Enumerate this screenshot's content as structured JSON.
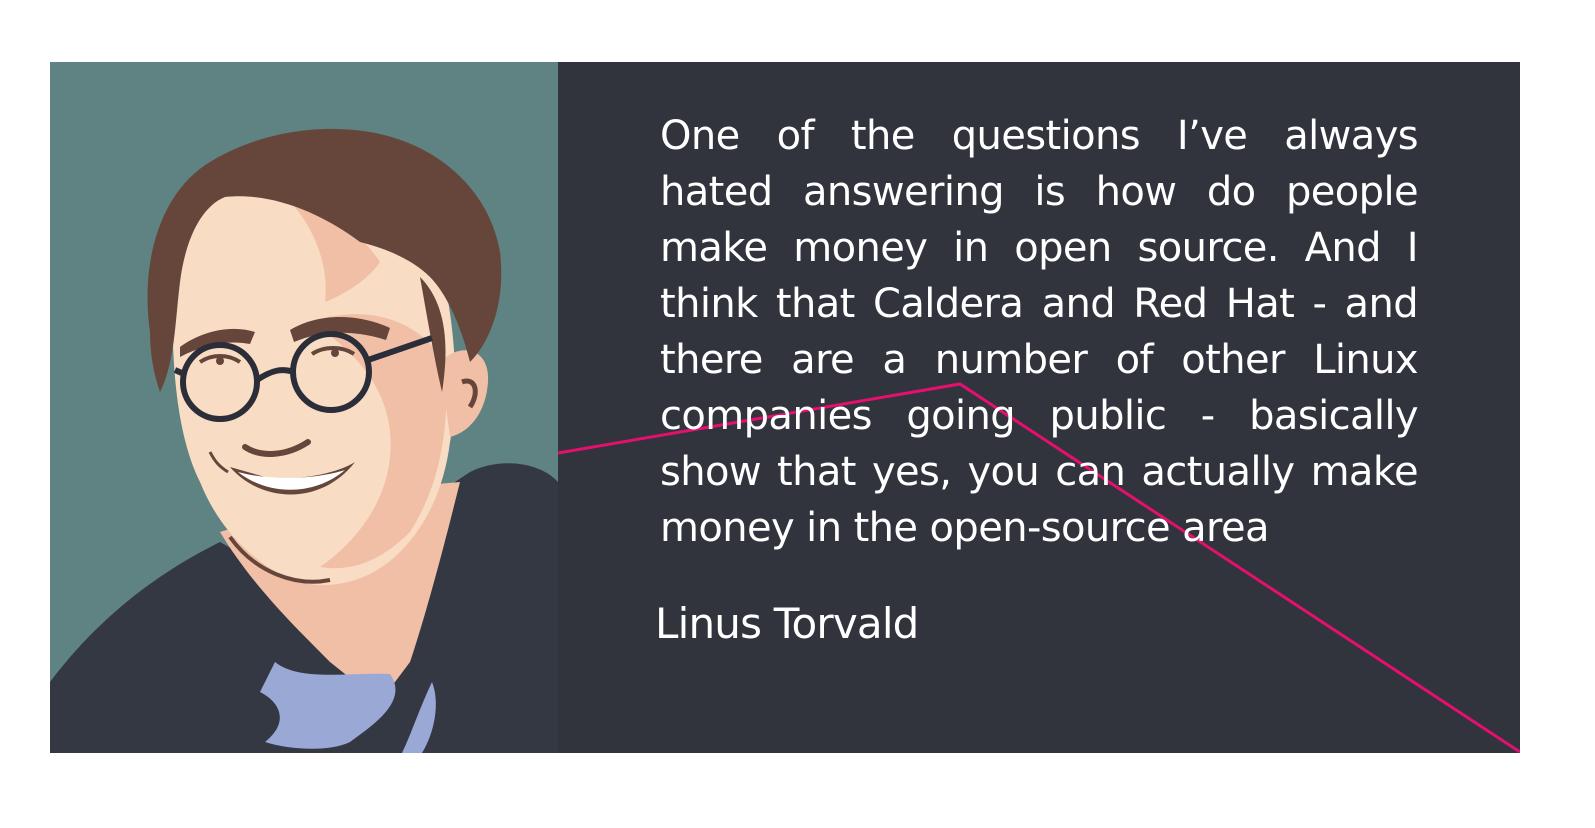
{
  "quote": {
    "text": "One of the questions I’ve always hated answering is how do people make money in open source. And I think that Caldera and Red Hat - and there are a number of other Linux companies going public - basically show that yes, you can actually make money in the open-source area",
    "author": "Linus Torvald"
  },
  "portrait": {
    "icon": "person-illustration"
  },
  "colors": {
    "page_background": "#ffffff",
    "portrait_background": "#5f8382",
    "quote_background": "#31333d",
    "text": "#ffffff",
    "accent_line": "#e5106e",
    "hair": "#66463a",
    "skin": "#f9dcc4",
    "skin_shadow": "#f1bfa6",
    "sweater": "#343842",
    "collar": "#9aa8d6",
    "glasses": "#2b2e38"
  }
}
